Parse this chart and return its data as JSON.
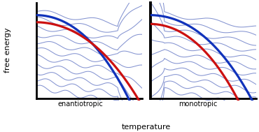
{
  "fig_width": 3.7,
  "fig_height": 1.89,
  "dpi": 100,
  "bg_color": "#ffffff",
  "light_blue": "#7788cc",
  "dark_blue": "#1133bb",
  "red_color": "#cc1111",
  "xlabel": "temperature",
  "ylabel": "free energy",
  "label_enanti": "enantiotropic",
  "label_mono": "monotropic",
  "n_wavy_lines": 11
}
